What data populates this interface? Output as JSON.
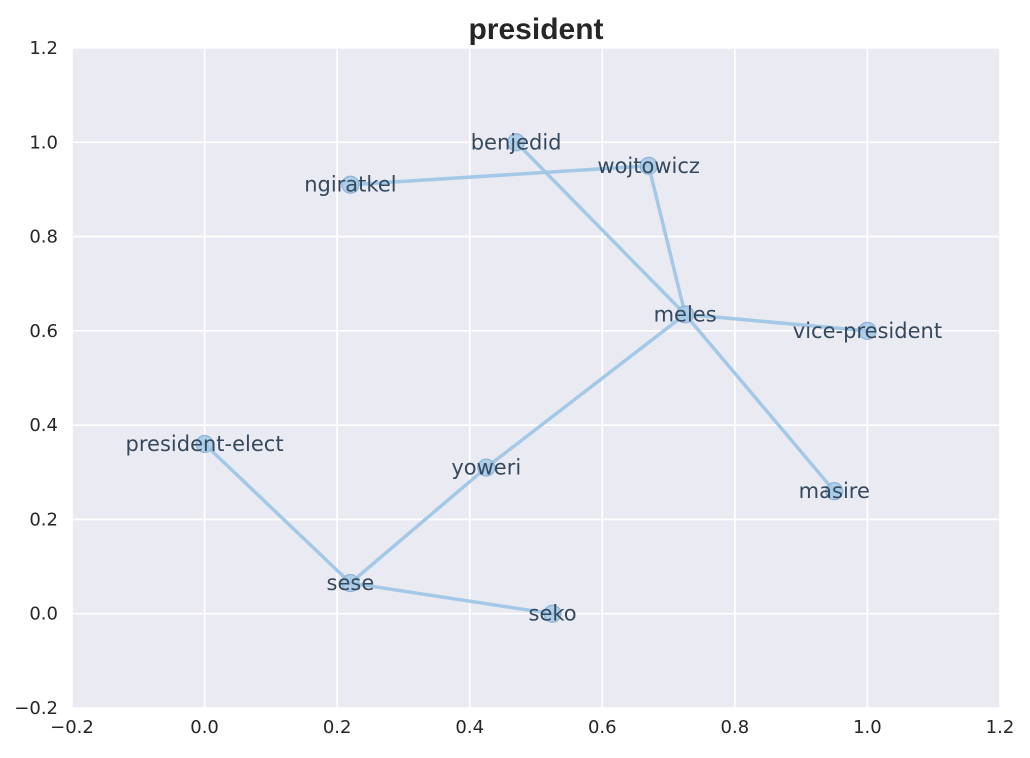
{
  "chart_data": {
    "type": "scatter",
    "title": "president",
    "xlabel": "",
    "ylabel": "",
    "xlim": [
      -0.2,
      1.2
    ],
    "ylim": [
      -0.2,
      1.2
    ],
    "xticks": [
      "−0.2",
      "0.0",
      "0.2",
      "0.4",
      "0.6",
      "0.8",
      "1.0",
      "1.2"
    ],
    "yticks": [
      "−0.2",
      "0.0",
      "0.2",
      "0.4",
      "0.6",
      "0.8",
      "1.0",
      "1.2"
    ],
    "grid": true,
    "points": [
      {
        "label": "benjedid",
        "x": 0.47,
        "y": 1.0
      },
      {
        "label": "wojtowicz",
        "x": 0.67,
        "y": 0.95
      },
      {
        "label": "ngiratkel",
        "x": 0.22,
        "y": 0.91
      },
      {
        "label": "meles",
        "x": 0.725,
        "y": 0.635
      },
      {
        "label": "vice-president",
        "x": 1.0,
        "y": 0.6
      },
      {
        "label": "president-elect",
        "x": 0.0,
        "y": 0.36
      },
      {
        "label": "yoweri",
        "x": 0.425,
        "y": 0.31
      },
      {
        "label": "masire",
        "x": 0.95,
        "y": 0.26
      },
      {
        "label": "sese",
        "x": 0.22,
        "y": 0.065
      },
      {
        "label": "seko",
        "x": 0.525,
        "y": 0.0
      }
    ],
    "edges": [
      [
        "ngiratkel",
        "wojtowicz"
      ],
      [
        "wojtowicz",
        "meles"
      ],
      [
        "benjedid",
        "meles"
      ],
      [
        "meles",
        "vice-president"
      ],
      [
        "meles",
        "masire"
      ],
      [
        "meles",
        "yoweri"
      ],
      [
        "yoweri",
        "sese"
      ],
      [
        "president-elect",
        "sese"
      ],
      [
        "sese",
        "seko"
      ]
    ],
    "colors": {
      "background": "#eaeaf2",
      "grid": "#ffffff",
      "line": "#a3c9e6",
      "marker": "#a3c9e6",
      "marker_edge": "#8fb3d6",
      "label": "#34495e"
    }
  }
}
